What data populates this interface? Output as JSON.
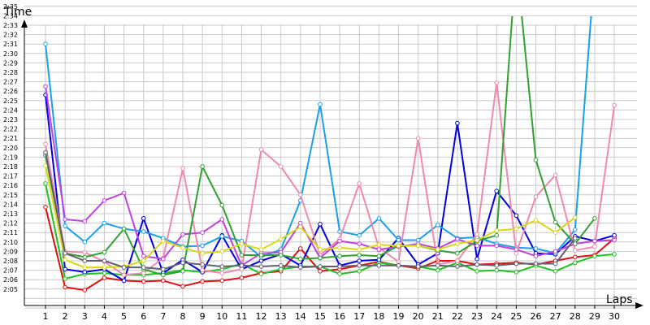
{
  "chart_data": {
    "type": "line",
    "ylabel": "Time",
    "xlabel": "Laps",
    "x": [
      1,
      2,
      3,
      4,
      5,
      6,
      7,
      8,
      9,
      10,
      11,
      12,
      13,
      14,
      15,
      16,
      17,
      18,
      19,
      20,
      21,
      22,
      23,
      24,
      25,
      26,
      27,
      28,
      29,
      30
    ],
    "y_ticks": [
      "2:05",
      "2:06",
      "2:07",
      "2:08",
      "2:09",
      "2:10",
      "2:11",
      "2:12",
      "2:13",
      "2:14",
      "2:15",
      "2:16",
      "2:17",
      "2:18",
      "2:19",
      "2:20",
      "2:21",
      "2:22",
      "2:23",
      "2:24",
      "2:25",
      "2:26",
      "2:27",
      "2:28",
      "2:29",
      "2:30",
      "2:31",
      "2:32",
      "2:33",
      "2:34",
      "2:35"
    ],
    "ylim_seconds": [
      122,
      157
    ],
    "grid": true,
    "series": [
      {
        "color": "#e01010",
        "values": [
          133.7,
          125.2,
          124.9,
          126.2,
          125.9,
          125.8,
          125.9,
          125.3,
          125.8,
          125.9,
          126.2,
          126.7,
          126.9,
          129.3,
          126.9,
          127.1,
          127.5,
          127.9,
          127.5,
          127.2,
          128.0,
          128.0,
          127.6,
          127.7,
          127.8,
          127.6,
          128.0,
          128.4,
          128.6,
          130.4
        ]
      },
      {
        "color": "#20c020",
        "values": [
          136.2,
          126.1,
          126.6,
          126.7,
          126.5,
          126.5,
          126.7,
          127.0,
          126.8,
          127.1,
          127.7,
          126.6,
          127.1,
          127.4,
          127.4,
          126.6,
          126.9,
          127.8,
          127.5,
          127.4,
          127.0,
          127.8,
          126.9,
          127.0,
          126.8,
          127.5,
          126.9,
          127.8,
          128.5,
          128.7
        ]
      },
      {
        "color": "#0000e0",
        "values": [
          145.6,
          127.1,
          126.8,
          127.1,
          125.9,
          132.5,
          126.7,
          128.1,
          126.8,
          130.7,
          127.1,
          128.0,
          128.7,
          127.5,
          131.9,
          127.5,
          128.0,
          128.1,
          130.4,
          127.6,
          128.8,
          142.6,
          128.2,
          135.4,
          132.8,
          128.8,
          128.7,
          130.6,
          130.1,
          130.7
        ]
      },
      {
        "color": "#18a0e8",
        "values": [
          151.0,
          131.7,
          130.0,
          132.0,
          131.4,
          131.1,
          130.4,
          129.5,
          129.6,
          130.6,
          130.1,
          128.4,
          129.2,
          134.4,
          144.6,
          131.1,
          130.7,
          132.5,
          130.2,
          130.2,
          131.8,
          130.4,
          130.5,
          129.8,
          129.4,
          129.3,
          128.8,
          131.3,
          159.0,
          160.0
        ]
      },
      {
        "color": "#f088b0",
        "values": [
          140.4,
          129.0,
          128.9,
          127.9,
          126.5,
          126.7,
          128.3,
          137.8,
          127.0,
          126.7,
          127.1,
          139.8,
          138.0,
          135.0,
          128.6,
          130.3,
          136.2,
          129.4,
          127.9,
          141.0,
          127.6,
          128.0,
          130.8,
          146.9,
          128.8,
          134.8,
          137.1,
          129.1,
          129.5,
          144.5
        ]
      },
      {
        "color": "#c040e0",
        "values": [
          146.5,
          132.4,
          132.2,
          134.4,
          135.2,
          128.5,
          128.2,
          130.8,
          131.0,
          132.4,
          127.5,
          128.8,
          128.9,
          132.0,
          128.3,
          130.1,
          129.8,
          129.2,
          129.5,
          129.8,
          129.3,
          130.3,
          129.6,
          129.6,
          129.2,
          128.5,
          129.0,
          129.8,
          130.1,
          130.2
        ]
      },
      {
        "color": "#30a030",
        "values": [
          139.2,
          128.8,
          128.4,
          128.9,
          131.4,
          127.1,
          126.5,
          126.9,
          138.0,
          133.9,
          128.6,
          128.6,
          128.6,
          128.2,
          128.3,
          128.5,
          128.6,
          128.5,
          129.6,
          129.6,
          129.1,
          128.8,
          130.1,
          130.7,
          160.0,
          138.7,
          132.1,
          129.8,
          132.5,
          null
        ]
      },
      {
        "color": "#d8d818",
        "values": [
          138.1,
          128.1,
          127.3,
          127.3,
          127.4,
          128.0,
          130.1,
          129.4,
          128.8,
          129.0,
          129.8,
          129.2,
          130.3,
          131.6,
          129.2,
          129.4,
          129.2,
          129.7,
          129.6,
          129.6,
          129.2,
          129.8,
          130.2,
          131.2,
          131.4,
          132.3,
          131.0,
          132.6,
          null,
          null
        ]
      },
      {
        "color": "#606070",
        "values": [
          139.5,
          128.8,
          128.0,
          128.0,
          127.3,
          127.3,
          127.1,
          127.8,
          127.6,
          127.4,
          127.5,
          127.4,
          127.5,
          127.3,
          127.4,
          127.4,
          127.5,
          127.5,
          127.5,
          127.4,
          127.5,
          127.4,
          127.6,
          127.5,
          127.7,
          127.7,
          127.7,
          130.4,
          null,
          null
        ]
      }
    ]
  }
}
